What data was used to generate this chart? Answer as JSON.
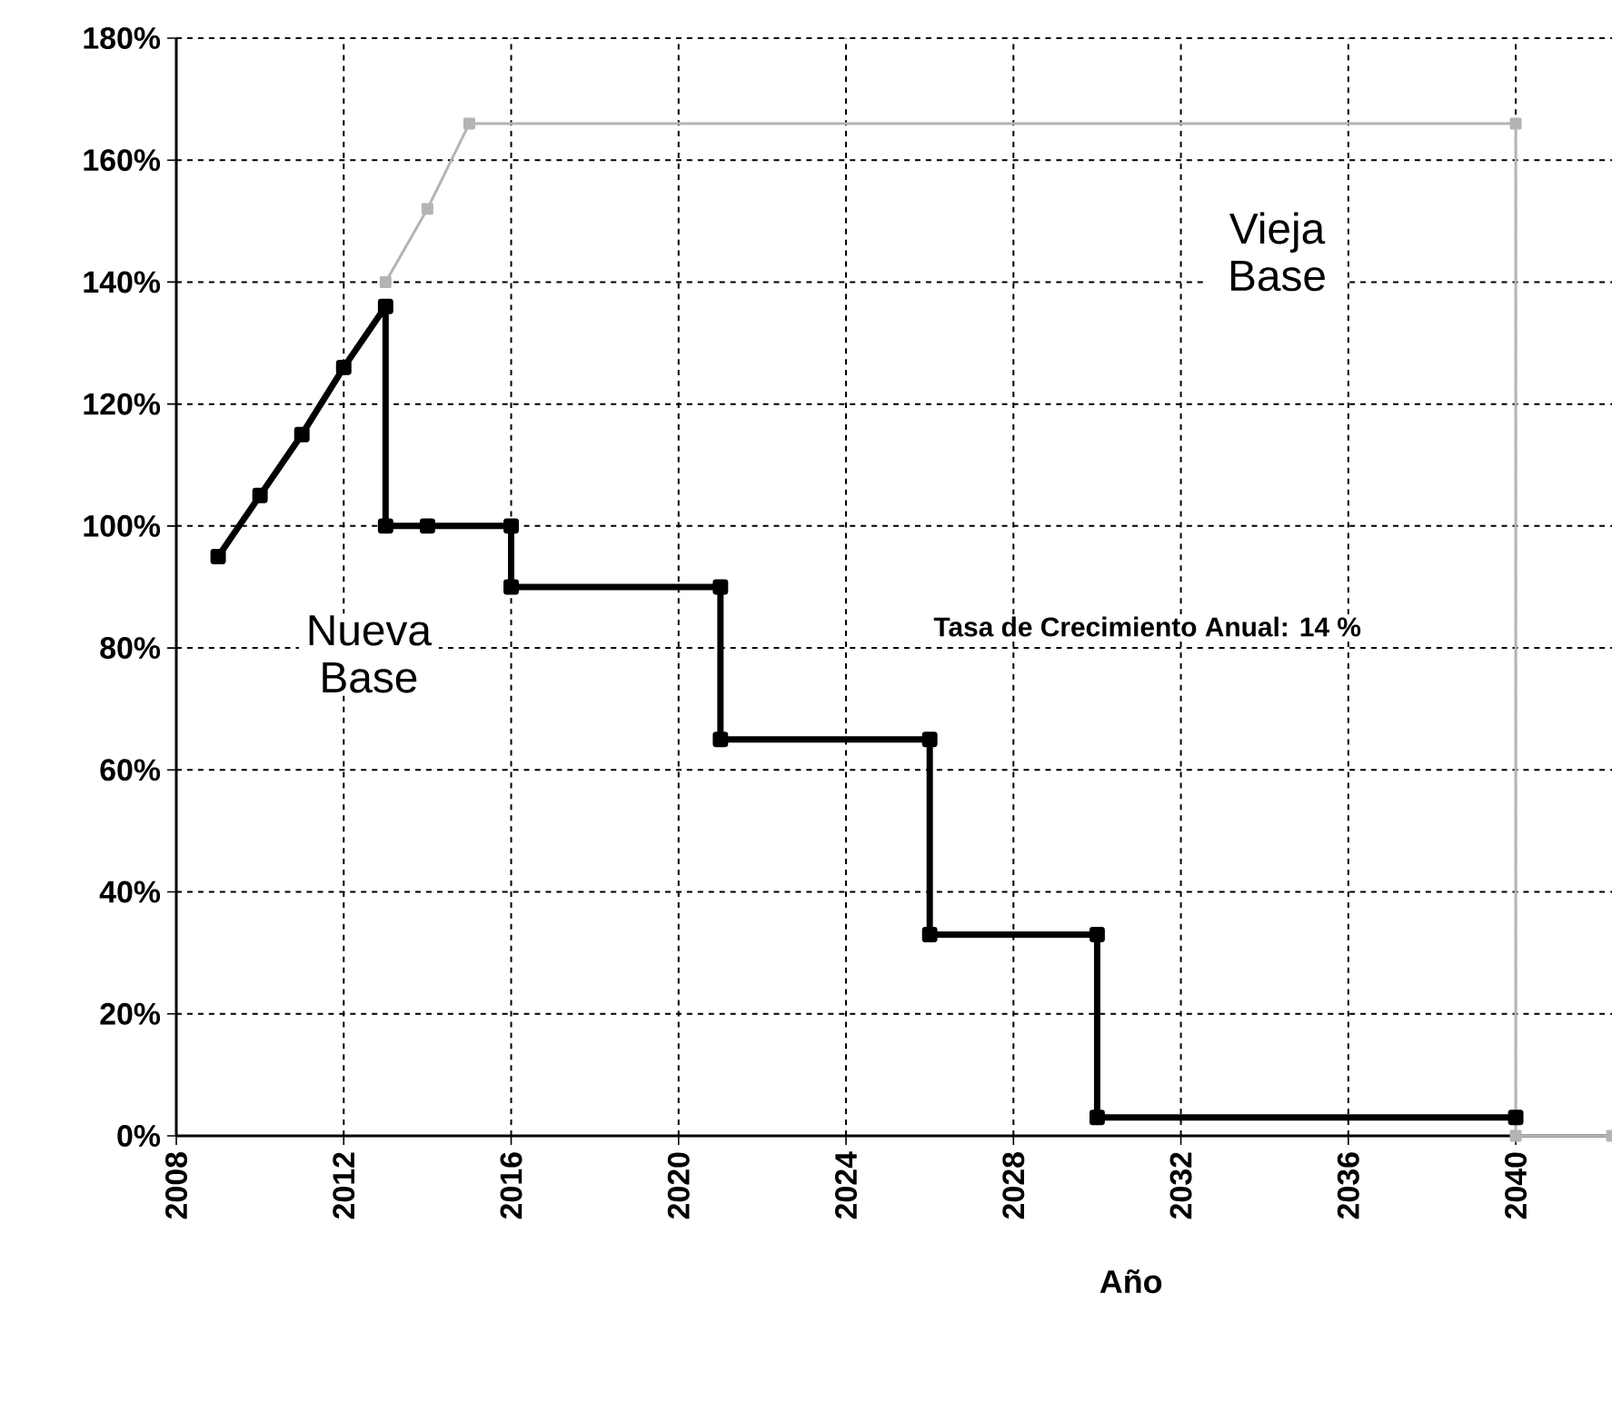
{
  "chart_data": {
    "type": "line",
    "xlabel": "Año",
    "xlim": [
      2008,
      2042.3
    ],
    "xticks": [
      2008,
      2012,
      2016,
      2020,
      2024,
      2028,
      2032,
      2036,
      2040
    ],
    "ylim": [
      0,
      180
    ],
    "yticks": [
      {
        "value": 0,
        "label": "0%"
      },
      {
        "value": 20,
        "label": "20%"
      },
      {
        "value": 40,
        "label": "40%"
      },
      {
        "value": 60,
        "label": "60%"
      },
      {
        "value": 80,
        "label": "80%"
      },
      {
        "value": 100,
        "label": "100%"
      },
      {
        "value": 120,
        "label": "120%"
      },
      {
        "value": 140,
        "label": "140%"
      },
      {
        "value": 160,
        "label": "160%"
      },
      {
        "value": 180,
        "label": "180%"
      }
    ],
    "grid": true,
    "marker": "square",
    "line_style": "solid",
    "series": [
      {
        "name": "Nueva Base",
        "color": "#000000",
        "x": [
          2009,
          2010,
          2011,
          2012,
          2013,
          2013,
          2014,
          2016,
          2016,
          2021,
          2021,
          2026,
          2026,
          2030,
          2030,
          2040
        ],
        "values": [
          95,
          105,
          115,
          126,
          136,
          100,
          100,
          100,
          90,
          90,
          65,
          65,
          33,
          33,
          3,
          3
        ]
      },
      {
        "name": "Vieja Base",
        "color": "#b4b4b4",
        "x": [
          2013,
          2014,
          2015,
          2040,
          2040,
          2042.3
        ],
        "values": [
          140,
          152,
          166,
          166,
          0,
          0
        ]
      }
    ],
    "annotations": [
      "Tasa de Crecimiento Anual: 14 %"
    ]
  }
}
